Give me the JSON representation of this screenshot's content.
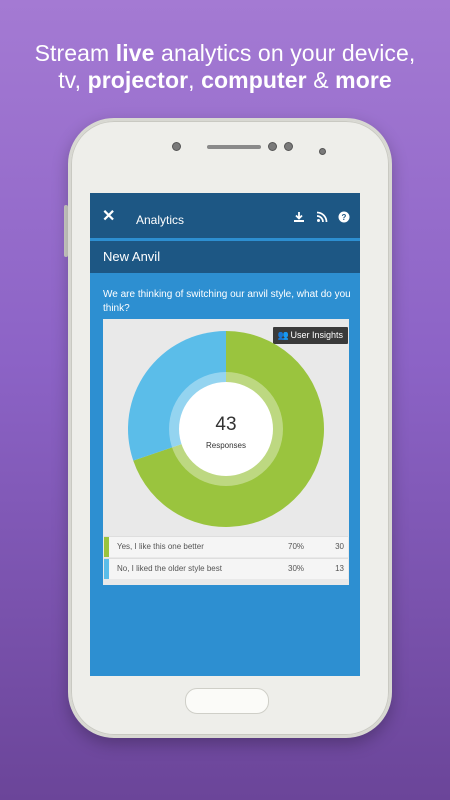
{
  "promo": {
    "line1_pre": "Stream ",
    "line1_bold": "live",
    "line1_post": " analytics on your device,",
    "line2_a": "tv, ",
    "line2_b": "projector",
    "line2_c": ", ",
    "line2_d": "computer",
    "line2_e": " & ",
    "line2_f": "more"
  },
  "appbar": {
    "close_icon": "close-icon",
    "title": "Analytics",
    "icons": [
      "download-icon",
      "rss-icon",
      "help-icon"
    ]
  },
  "section": {
    "title": "New Anvil"
  },
  "question": {
    "text": "We are thinking of switching our anvil style, what do you think?"
  },
  "insights_button": {
    "label": "User Insights",
    "icon": "users-icon"
  },
  "summary": {
    "total": "43",
    "total_label": "Responses"
  },
  "colors": {
    "yes": "#9ac43e",
    "no": "#5bbde9",
    "topbar": "#1d5784",
    "screen": "#2d8fd1"
  },
  "chart_data": {
    "type": "pie",
    "categories": [
      "Yes, I like this one better",
      "No, I liked the older style best"
    ],
    "values": [
      30,
      13
    ],
    "percent_labels": [
      "70%",
      "30%"
    ],
    "count_labels": [
      "30",
      "13"
    ]
  }
}
